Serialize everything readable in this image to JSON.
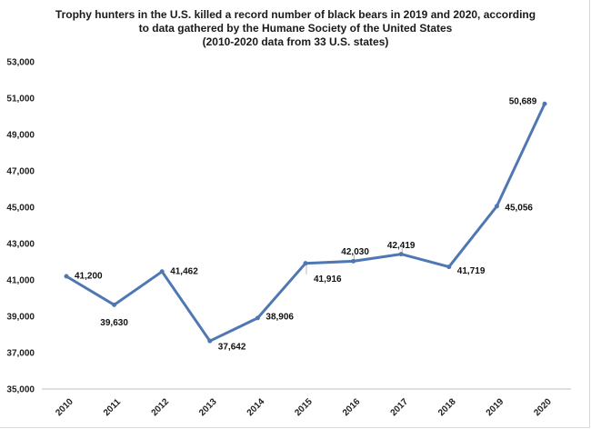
{
  "chart_data": {
    "type": "line",
    "title_lines": [
      "Trophy hunters in the U.S. killed a record number of black bears in 2019 and 2020, according",
      "to data gathered by the Humane Society of the United States",
      "(2010-2020 data from 33 U.S. states)"
    ],
    "categories": [
      "2010",
      "2011",
      "2012",
      "2013",
      "2014",
      "2015",
      "2016",
      "2017",
      "2018",
      "2019",
      "2020"
    ],
    "values": [
      41200,
      39630,
      41462,
      37642,
      38906,
      41916,
      42030,
      42419,
      41719,
      45056,
      50689
    ],
    "data_labels": [
      "41,200",
      "39,630",
      "41,462",
      "37,642",
      "38,906",
      "41,916",
      "42,030",
      "42,419",
      "41,719",
      "45,056",
      "50,689"
    ],
    "ylim": [
      35000,
      53000
    ],
    "yticks": [
      "35,000",
      "37,000",
      "39,000",
      "41,000",
      "43,000",
      "45,000",
      "47,000",
      "49,000",
      "51,000",
      "53,000"
    ],
    "ytick_values": [
      35000,
      37000,
      39000,
      41000,
      43000,
      45000,
      47000,
      49000,
      51000,
      53000
    ],
    "grid": false,
    "legend": "none",
    "line_color": "#4f77b4"
  }
}
